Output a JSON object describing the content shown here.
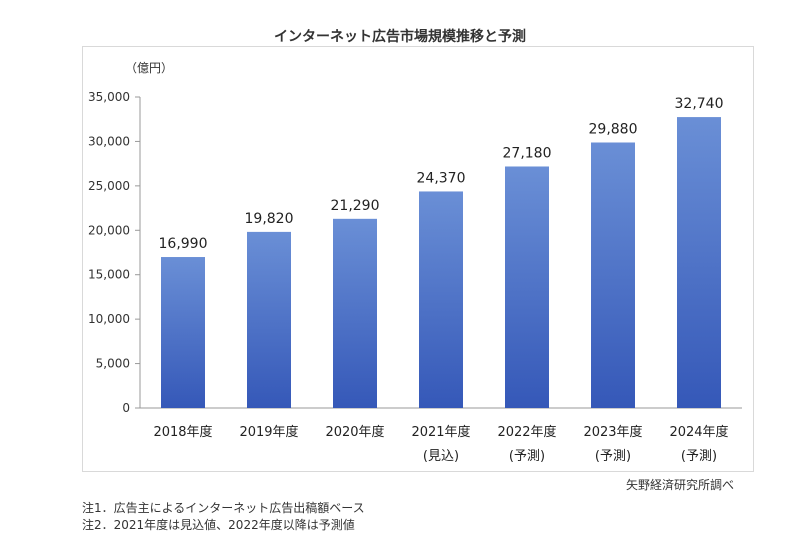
{
  "header": {
    "title": "インターネット広告市場規模推移と予測"
  },
  "footer": {
    "source": "矢野経済研究所調べ",
    "notes": [
      "注1．広告主によるインターネット広告出稿額ベース",
      "注2．2021年度は見込値、2022年度以降は予測値"
    ]
  },
  "chart_data": {
    "type": "bar",
    "title": "インターネット広告市場規模推移と予測",
    "unit_label": "（億円）",
    "categories": [
      "2018年度",
      "2019年度",
      "2020年度",
      "2021年度",
      "2022年度",
      "2023年度",
      "2024年度"
    ],
    "sublabels": [
      "",
      "",
      "",
      "(見込)",
      "(予測)",
      "(予測)",
      "(予測)"
    ],
    "values": [
      16990,
      19820,
      21290,
      24370,
      27180,
      29880,
      32740
    ],
    "value_labels": [
      "16,990",
      "19,820",
      "21,290",
      "24,370",
      "27,180",
      "29,880",
      "32,740"
    ],
    "ylim": [
      0,
      35000
    ],
    "yticks": [
      0,
      5000,
      10000,
      15000,
      20000,
      25000,
      30000,
      35000
    ],
    "ytick_labels": [
      "0",
      "5,000",
      "10,000",
      "15,000",
      "20,000",
      "25,000",
      "30,000",
      "35,000"
    ],
    "grid": false,
    "colors": {
      "bar_top": "#6a8fd6",
      "bar_bottom": "#3558b8",
      "axis": "#999999"
    }
  }
}
